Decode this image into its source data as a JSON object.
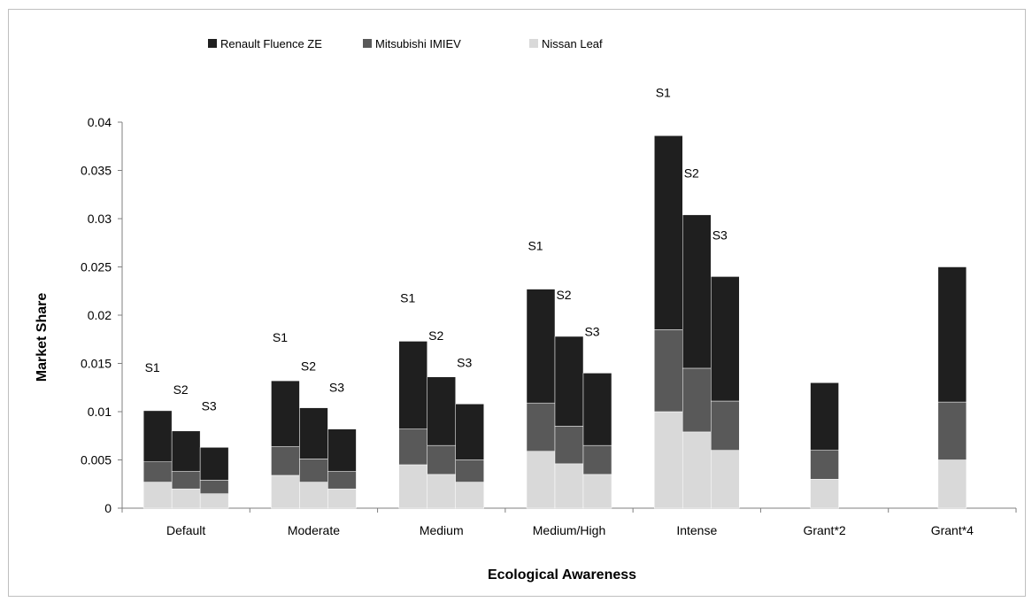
{
  "chart_data": {
    "type": "bar",
    "stacked": true,
    "xlabel": "Ecological Awareness",
    "ylabel": "Market Share",
    "ylim": [
      0,
      0.04
    ],
    "yticks": [
      "0",
      "0.005",
      "0.01",
      "0.015",
      "0.02",
      "0.025",
      "0.03",
      "0.035",
      "0.04"
    ],
    "grid": false,
    "legend_position": "top",
    "series": [
      {
        "name": "Nissan Leaf",
        "color": "#d9d9d9"
      },
      {
        "name": "Mitsubishi IMIEV",
        "color": "#595959"
      },
      {
        "name": "Renault Fluence ZE",
        "color": "#1f1f1f"
      }
    ],
    "legend_order": [
      "Renault Fluence ZE",
      "Mitsubishi IMIEV",
      "Nissan Leaf"
    ],
    "groups": [
      {
        "category": "Default",
        "bars": [
          {
            "label": "S1",
            "values": [
              0.0027,
              0.0021,
              0.0053
            ]
          },
          {
            "label": "S2",
            "values": [
              0.002,
              0.0018,
              0.0042
            ]
          },
          {
            "label": "S3",
            "values": [
              0.0015,
              0.0014,
              0.0034
            ]
          }
        ]
      },
      {
        "category": "Moderate",
        "bars": [
          {
            "label": "S1",
            "values": [
              0.0034,
              0.003,
              0.0068
            ]
          },
          {
            "label": "S2",
            "values": [
              0.0027,
              0.0024,
              0.0053
            ]
          },
          {
            "label": "S3",
            "values": [
              0.002,
              0.0018,
              0.0044
            ]
          }
        ]
      },
      {
        "category": "Medium",
        "bars": [
          {
            "label": "S1",
            "values": [
              0.0045,
              0.0037,
              0.0091
            ]
          },
          {
            "label": "S2",
            "values": [
              0.0035,
              0.003,
              0.0071
            ]
          },
          {
            "label": "S3",
            "values": [
              0.0027,
              0.0023,
              0.0058
            ]
          }
        ]
      },
      {
        "category": "Medium/High",
        "bars": [
          {
            "label": "S1",
            "values": [
              0.0059,
              0.005,
              0.0118
            ]
          },
          {
            "label": "S2",
            "values": [
              0.0046,
              0.0039,
              0.0093
            ]
          },
          {
            "label": "S3",
            "values": [
              0.0035,
              0.003,
              0.0075
            ]
          }
        ]
      },
      {
        "category": "Intense",
        "bars": [
          {
            "label": "S1",
            "values": [
              0.01,
              0.0085,
              0.0201
            ]
          },
          {
            "label": "S2",
            "values": [
              0.0079,
              0.0066,
              0.0159
            ]
          },
          {
            "label": "S3",
            "values": [
              0.006,
              0.0051,
              0.0129
            ]
          }
        ]
      },
      {
        "category": "Grant*2",
        "bars": [
          {
            "label": "",
            "values": [
              0.003,
              0.003,
              0.007
            ]
          }
        ]
      },
      {
        "category": "Grant*4",
        "bars": [
          {
            "label": "",
            "values": [
              0.005,
              0.006,
              0.014
            ]
          }
        ]
      }
    ]
  }
}
